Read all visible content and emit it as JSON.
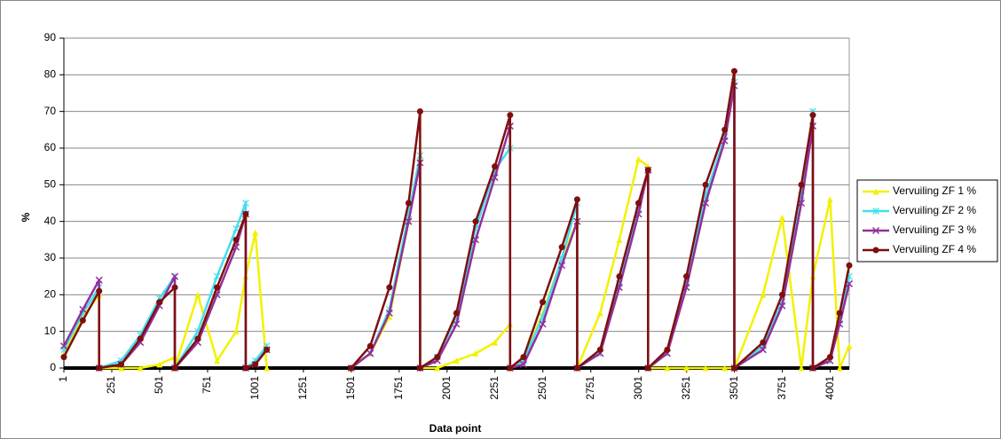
{
  "chart_data": {
    "type": "line",
    "x_label": "Data point",
    "y_label": "%",
    "x": [
      1,
      100,
      185,
      185,
      300,
      400,
      500,
      580,
      580,
      700,
      800,
      900,
      950,
      950,
      1000,
      1060,
      1300,
      1500,
      1600,
      1700,
      1800,
      1860,
      1860,
      1950,
      2050,
      2150,
      2250,
      2330,
      2330,
      2400,
      2500,
      2600,
      2680,
      2680,
      2800,
      2900,
      3000,
      3050,
      3050,
      3150,
      3250,
      3350,
      3450,
      3500,
      3500,
      3650,
      3750,
      3850,
      3910,
      3910,
      4000,
      4050,
      4100
    ],
    "series": [
      {
        "name": "Vervuiling ZF 1 %",
        "color": "#f2f200",
        "marker": "triangle",
        "values": [
          4,
          14,
          20,
          0,
          0,
          0,
          1,
          3,
          0,
          20,
          2,
          10,
          25,
          25,
          37,
          0,
          null,
          0,
          4,
          14,
          40,
          58,
          0,
          0,
          2,
          4,
          7,
          12,
          0,
          2,
          15,
          30,
          40,
          0,
          15,
          35,
          57,
          55,
          0,
          0,
          0,
          0,
          0,
          0,
          0,
          20,
          41,
          0,
          25,
          25,
          46,
          0,
          6
        ]
      },
      {
        "name": "Vervuiling ZF 2 %",
        "color": "#40e0f0",
        "marker": "asterisk",
        "values": [
          5,
          15,
          22,
          0,
          2,
          9,
          19,
          25,
          0,
          10,
          25,
          38,
          45,
          0,
          2,
          6,
          null,
          0,
          4,
          16,
          42,
          58,
          0,
          3,
          14,
          38,
          54,
          60,
          0,
          2,
          14,
          30,
          45,
          0,
          4,
          23,
          43,
          54,
          0,
          4,
          23,
          47,
          63,
          78,
          0,
          6,
          18,
          47,
          70,
          0,
          2,
          13,
          25
        ]
      },
      {
        "name": "Vervuiling ZF 3 %",
        "color": "#93309a",
        "marker": "x",
        "values": [
          6,
          16,
          24,
          0,
          1,
          7,
          17,
          25,
          0,
          7,
          20,
          33,
          42,
          0,
          1,
          5,
          null,
          0,
          4,
          15,
          40,
          56,
          0,
          2,
          12,
          35,
          52,
          66,
          0,
          1,
          12,
          28,
          40,
          0,
          4,
          22,
          42,
          54,
          0,
          4,
          22,
          45,
          62,
          77,
          0,
          5,
          17,
          45,
          66,
          0,
          2,
          12,
          23
        ]
      },
      {
        "name": "Vervuiling ZF 4 %",
        "color": "#7f0f0f",
        "marker": "circle",
        "values": [
          3,
          13,
          21,
          0,
          1,
          8,
          18,
          22,
          0,
          8,
          22,
          35,
          42,
          0,
          1,
          5,
          null,
          0,
          6,
          22,
          45,
          70,
          0,
          3,
          15,
          40,
          55,
          69,
          0,
          3,
          18,
          33,
          46,
          0,
          5,
          25,
          45,
          54,
          0,
          5,
          25,
          50,
          65,
          81,
          0,
          7,
          20,
          50,
          69,
          0,
          3,
          15,
          28
        ]
      }
    ],
    "xlim": [
      1,
      4100
    ],
    "xticks": [
      1,
      251,
      501,
      751,
      1001,
      1251,
      1501,
      1751,
      2001,
      2251,
      2501,
      2751,
      3001,
      3251,
      3501,
      3751,
      4001
    ],
    "ylim": [
      0,
      90
    ],
    "yticks": [
      0,
      10,
      20,
      30,
      40,
      50,
      60,
      70,
      80,
      90
    ],
    "grid": true,
    "legend": "right"
  }
}
